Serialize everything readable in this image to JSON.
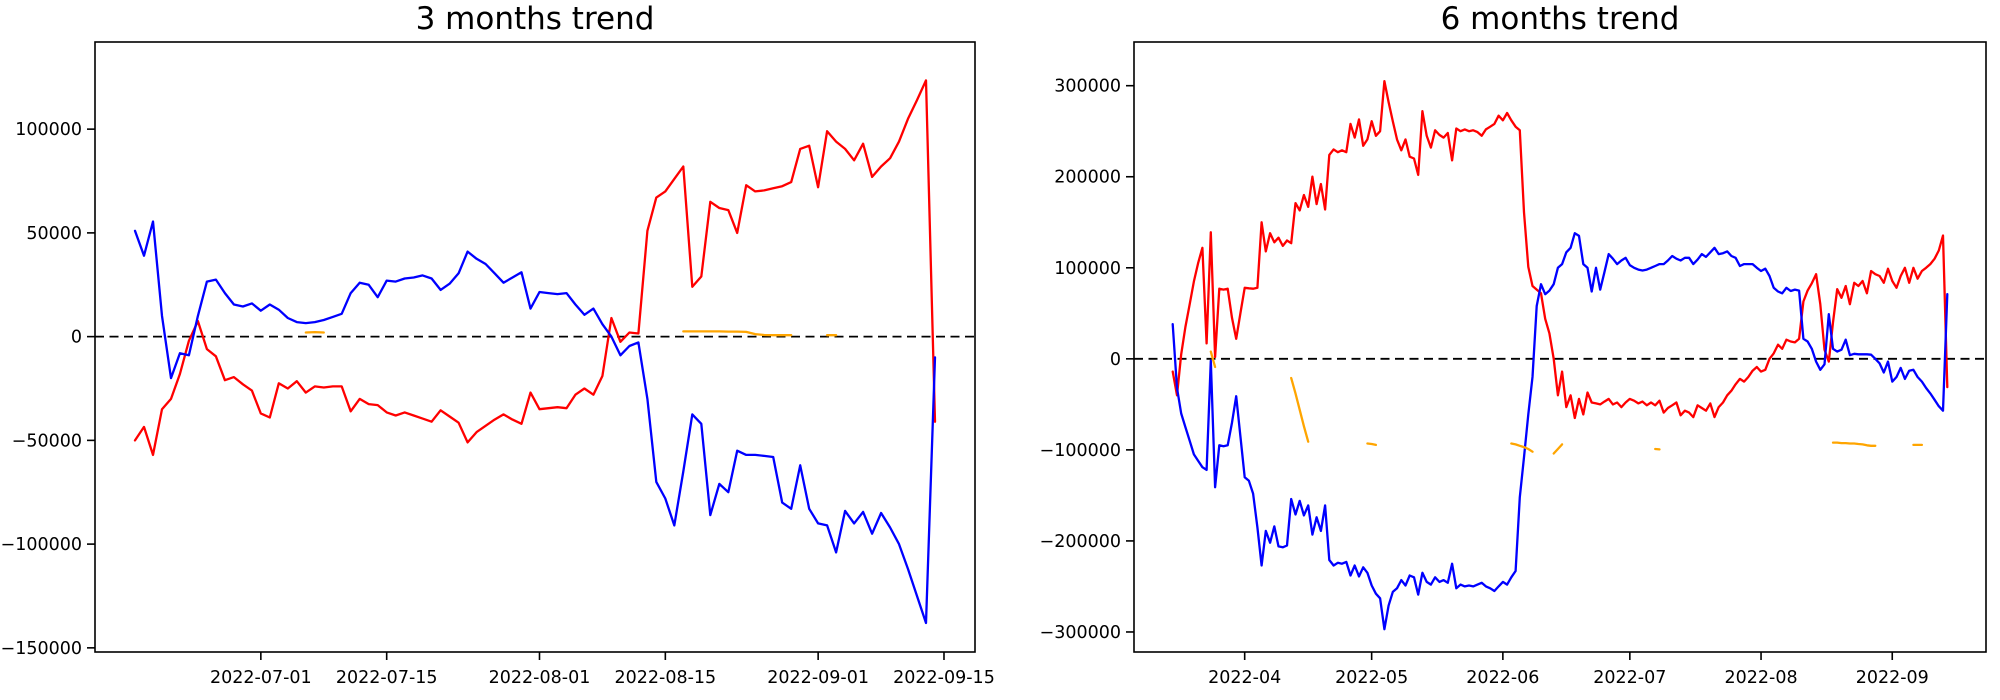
{
  "figure": {
    "background": "#ffffff",
    "zero_line_color": "#000000",
    "spine_color": "#000000"
  },
  "chart_data": [
    {
      "type": "line",
      "title": "3 months trend",
      "grid": false,
      "legend": "none",
      "start_date": "2022-06-17",
      "frequency": "daily",
      "ylim": [
        -152000,
        142000
      ],
      "y_ticks": [
        100000,
        50000,
        0,
        -50000,
        -100000,
        -150000
      ],
      "x_ticks": [
        {
          "label": "2022-07-01",
          "date": "2022-07-01"
        },
        {
          "label": "2022-07-15",
          "date": "2022-07-15"
        },
        {
          "label": "2022-08-01",
          "date": "2022-08-01"
        },
        {
          "label": "2022-08-15",
          "date": "2022-08-15"
        },
        {
          "label": "2022-09-01",
          "date": "2022-09-01"
        },
        {
          "label": "2022-09-15",
          "date": "2022-09-15"
        }
      ],
      "zero_line": {
        "style": "dashed",
        "color": "#000000"
      },
      "series": [
        {
          "name": "red-line",
          "color": "#ff0000",
          "values": [
            -50000,
            -43500,
            -57000,
            -35000,
            -30000,
            -18000,
            -2000,
            7500,
            -6000,
            -9500,
            -21000,
            -19500,
            -23000,
            -26000,
            -37000,
            -39000,
            -22500,
            -25000,
            -21500,
            -27000,
            -24000,
            -24500,
            -24000,
            -24000,
            -36000,
            -30000,
            -32500,
            -33000,
            -36500,
            -38000,
            -36500,
            -38000,
            -39500,
            -41000,
            -35500,
            -38500,
            -41500,
            -51000,
            -46000,
            -43000,
            -40000,
            -37500,
            -40000,
            -42000,
            -27000,
            -35000,
            -34500,
            -34000,
            -34500,
            -28000,
            -25000,
            -28000,
            -19000,
            9000,
            -2500,
            2000,
            1500,
            51000,
            67000,
            70000,
            76000,
            82000,
            24000,
            29000,
            65000,
            62000,
            61000,
            50000,
            73000,
            70000,
            70500,
            71500,
            72500,
            74500,
            90500,
            92000,
            72000,
            99000,
            94000,
            90500,
            85000,
            93000,
            77000,
            82000,
            86000,
            94000,
            105000,
            114000,
            123500,
            -41000
          ]
        },
        {
          "name": "blue-line",
          "color": "#0000ff",
          "values": [
            51000,
            39000,
            55500,
            10000,
            -20000,
            -8000,
            -9000,
            10000,
            26500,
            27500,
            21000,
            15500,
            14500,
            16000,
            12500,
            15500,
            13000,
            9000,
            7000,
            6500,
            7000,
            8000,
            9500,
            11000,
            21000,
            26000,
            25000,
            19000,
            27000,
            26500,
            28000,
            28500,
            29500,
            28000,
            22500,
            25500,
            30500,
            41000,
            37500,
            35000,
            30500,
            26000,
            28500,
            31000,
            13500,
            21500,
            21000,
            20500,
            21000,
            15500,
            10500,
            13500,
            6000,
            0,
            -9000,
            -4500,
            -2800,
            -30000,
            -70000,
            -78000,
            -91000,
            -65000,
            -37500,
            -42000,
            -86000,
            -71000,
            -75000,
            -55000,
            -57000,
            -57000,
            -57500,
            -58000,
            -80000,
            -83000,
            -62000,
            -83000,
            -90000,
            -91000,
            -104000,
            -84000,
            -90000,
            -84500,
            -95000,
            -85000,
            -92000,
            -100000,
            -112000,
            -125000,
            -138000,
            -10000
          ]
        },
        {
          "name": "orange-line",
          "color": "#ffa500",
          "segments": [
            {
              "start": "2022-07-06",
              "values": [
                2000,
                2200,
                2000
              ]
            },
            {
              "start": "2022-08-17",
              "values": [
                2500,
                2500,
                2500,
                2500,
                2500,
                2400,
                2400,
                2300,
                1200,
                800,
                700,
                700,
                700
              ]
            },
            {
              "start": "2022-09-02",
              "values": [
                700,
                700
              ]
            }
          ]
        }
      ]
    },
    {
      "type": "line",
      "title": "6 months trend",
      "grid": false,
      "legend": "none",
      "start_date": "2022-03-15",
      "frequency": "daily",
      "ylim": [
        -322000,
        348000
      ],
      "y_ticks": [
        300000,
        200000,
        100000,
        0,
        -100000,
        -200000,
        -300000
      ],
      "x_ticks": [
        {
          "label": "2022-04",
          "date": "2022-04-01"
        },
        {
          "label": "2022-05",
          "date": "2022-05-01"
        },
        {
          "label": "2022-06",
          "date": "2022-06-01"
        },
        {
          "label": "2022-07",
          "date": "2022-07-01"
        },
        {
          "label": "2022-08",
          "date": "2022-08-01"
        },
        {
          "label": "2022-09",
          "date": "2022-09-01"
        }
      ],
      "zero_line": {
        "style": "dashed",
        "color": "#000000"
      },
      "series": [
        {
          "name": "red-line",
          "color": "#ff0000",
          "values": [
            -14000,
            -40000,
            5000,
            35000,
            60000,
            85000,
            105000,
            122000,
            17000,
            139000,
            2000,
            77000,
            76000,
            77000,
            45000,
            22000,
            50000,
            78000,
            77500,
            77000,
            78000,
            150000,
            118000,
            138000,
            128000,
            133000,
            124000,
            130000,
            127000,
            171000,
            163000,
            180000,
            167000,
            200000,
            170000,
            192000,
            164000,
            224000,
            230000,
            227000,
            229000,
            227000,
            258000,
            243000,
            263000,
            234000,
            241000,
            261000,
            245000,
            250000,
            305000,
            282000,
            261000,
            241000,
            229000,
            241000,
            222000,
            220000,
            202000,
            272000,
            245000,
            232000,
            251000,
            246000,
            243000,
            248000,
            218000,
            253000,
            250000,
            252000,
            250000,
            251000,
            249000,
            245000,
            252000,
            255000,
            258000,
            267000,
            262000,
            270000,
            262000,
            255000,
            251000,
            161000,
            101000,
            80000,
            76000,
            72000,
            44000,
            28000,
            0,
            -40000,
            -14000,
            -53000,
            -40000,
            -65000,
            -44000,
            -61000,
            -37000,
            -48000,
            -49000,
            -50000,
            -47000,
            -44000,
            -50000,
            -48000,
            -53000,
            -48000,
            -44000,
            -46000,
            -49000,
            -47000,
            -51000,
            -48000,
            -51000,
            -46000,
            -59000,
            -54000,
            -51000,
            -48000,
            -62000,
            -57000,
            -59000,
            -64000,
            -51000,
            -54000,
            -57000,
            -49000,
            -64000,
            -53000,
            -48000,
            -40000,
            -35000,
            -28000,
            -22000,
            -25000,
            -20000,
            -13000,
            -9000,
            -14000,
            -12000,
            0,
            6000,
            15500,
            11000,
            21000,
            19000,
            18000,
            22000,
            63000,
            75000,
            83000,
            93000,
            60000,
            10000,
            -3000,
            40000,
            76500,
            67000,
            80000,
            60000,
            83500,
            80000,
            85500,
            72000,
            96500,
            93000,
            91000,
            83500,
            99000,
            85500,
            78000,
            91000,
            100000,
            83500,
            100000,
            88000,
            96500,
            100000,
            104000,
            110000,
            119000,
            135500,
            -31000
          ]
        },
        {
          "name": "blue-line",
          "color": "#0000ff",
          "values": [
            38000,
            -32000,
            -60000,
            -75000,
            -90000,
            -105000,
            -112000,
            -119000,
            -122000,
            -2000,
            -141000,
            -95000,
            -96000,
            -95000,
            -70000,
            -41000,
            -85000,
            -130000,
            -134000,
            -148000,
            -185000,
            -227000,
            -189000,
            -202000,
            -184000,
            -206000,
            -207000,
            -205000,
            -154000,
            -171000,
            -156000,
            -172000,
            -161000,
            -193000,
            -174000,
            -189000,
            -161000,
            -221000,
            -227000,
            -224000,
            -225000,
            -223000,
            -238000,
            -227000,
            -239000,
            -229000,
            -235000,
            -249000,
            -258000,
            -263000,
            -297000,
            -271000,
            -256000,
            -252000,
            -243000,
            -249000,
            -238000,
            -240000,
            -259000,
            -235000,
            -245000,
            -248000,
            -240000,
            -245000,
            -243000,
            -246000,
            -225000,
            -252000,
            -248000,
            -250000,
            -249000,
            -250000,
            -248000,
            -246000,
            -250000,
            -252000,
            -255000,
            -250000,
            -245000,
            -248000,
            -240000,
            -233000,
            -152000,
            -108000,
            -61000,
            -20000,
            58000,
            82000,
            71000,
            75000,
            82000,
            100000,
            104000,
            117000,
            122000,
            138000,
            135000,
            104000,
            100000,
            74000,
            100000,
            76000,
            95000,
            115000,
            110000,
            104000,
            108000,
            111000,
            103000,
            100000,
            98000,
            97000,
            98000,
            100000,
            102000,
            104000,
            104000,
            108000,
            113000,
            110000,
            108000,
            111000,
            111000,
            104000,
            109000,
            115000,
            112000,
            117000,
            122000,
            115000,
            116000,
            118000,
            113000,
            111000,
            102000,
            104000,
            104000,
            104000,
            100000,
            96500,
            99000,
            91000,
            78000,
            74000,
            72000,
            78000,
            74500,
            76000,
            75000,
            22000,
            19000,
            11000,
            -3000,
            -12000,
            -6000,
            49000,
            11000,
            8000,
            10000,
            21000,
            4000,
            5500,
            5000,
            5000,
            5000,
            4500,
            0,
            -5000,
            -15000,
            -3000,
            -25000,
            -20000,
            -10000,
            -22000,
            -13000,
            -12000,
            -20000,
            -25000,
            -32000,
            -38000,
            -45000,
            -52000,
            -57000,
            71000
          ]
        },
        {
          "name": "orange-line",
          "color": "#ffa500",
          "segments": [
            {
              "start": "2022-03-24",
              "values": [
                8000,
                -9000
              ]
            },
            {
              "start": "2022-04-12",
              "values": [
                -21000,
                -38000,
                -56000,
                -74000,
                -91000
              ]
            },
            {
              "start": "2022-04-30",
              "values": [
                -93000,
                -93500,
                -94500
              ]
            },
            {
              "start": "2022-06-03",
              "values": [
                -93000,
                -94000,
                -95500,
                -97000,
                -99000,
                -102000
              ]
            },
            {
              "start": "2022-06-13",
              "values": [
                -104000,
                -99000,
                -94000
              ]
            },
            {
              "start": "2022-07-07",
              "values": [
                -99000,
                -99500
              ]
            },
            {
              "start": "2022-08-18",
              "values": [
                -92000,
                -92000,
                -92500,
                -92500,
                -93000,
                -93000,
                -93500,
                -94000,
                -95000,
                -95500,
                -95500
              ]
            },
            {
              "start": "2022-09-06",
              "values": [
                -94500,
                -94500,
                -94500
              ]
            }
          ]
        }
      ]
    }
  ]
}
